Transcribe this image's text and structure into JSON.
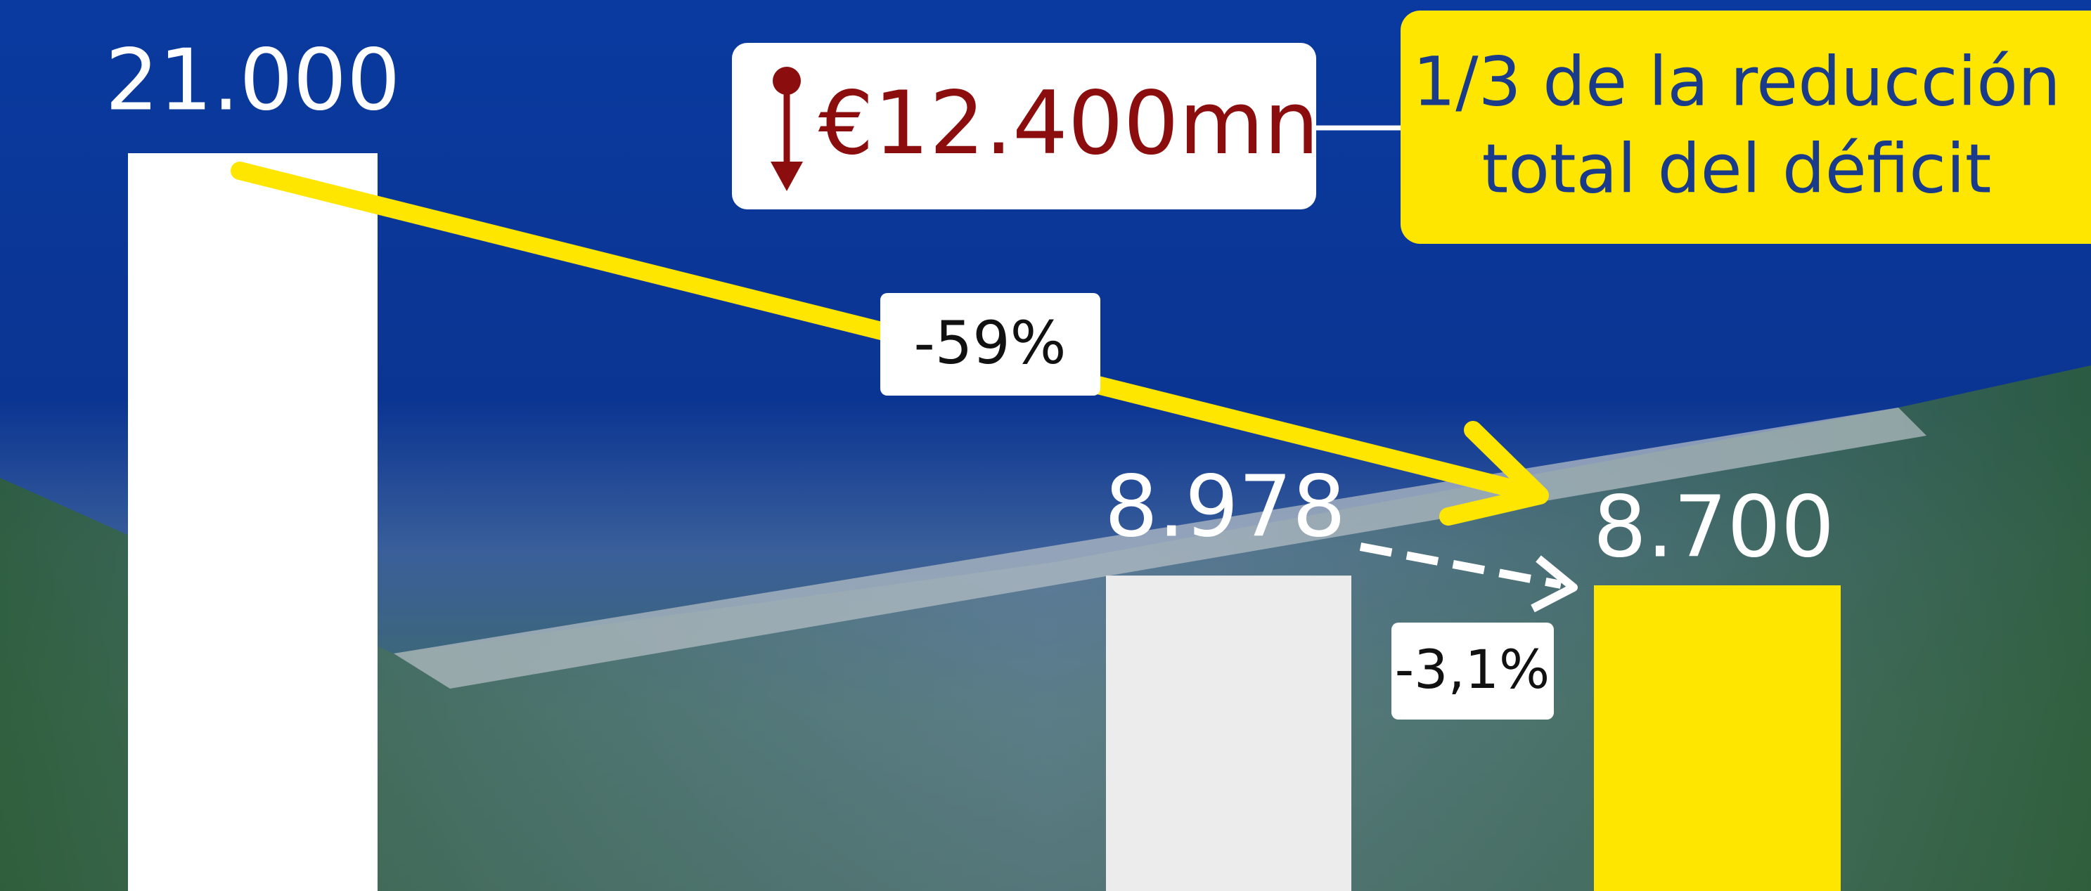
{
  "chart_data": {
    "type": "bar",
    "values": [
      21000,
      8978,
      8700
    ],
    "value_labels": [
      "21.000",
      "8.978",
      "8.700"
    ],
    "colors": [
      "#ffffff",
      "#ececec",
      "#ffe600"
    ],
    "annotations": {
      "saving": "€12.400mn",
      "callout": [
        "1/3 de la reducción",
        "total del déficit"
      ],
      "change_total": "-59%",
      "change_last": "-3,1%"
    }
  }
}
